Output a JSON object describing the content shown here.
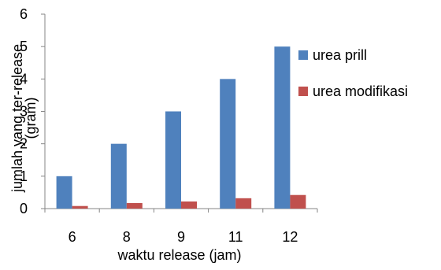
{
  "chart_data": {
    "type": "bar",
    "categories": [
      "6",
      "8",
      "9",
      "11",
      "12"
    ],
    "series": [
      {
        "name": "urea prill",
        "color": "#4F81BD",
        "values": [
          1.0,
          2.0,
          3.0,
          4.0,
          5.0
        ]
      },
      {
        "name": "urea modifikasi",
        "color": "#C0504D",
        "values": [
          0.08,
          0.17,
          0.22,
          0.32,
          0.42
        ]
      }
    ],
    "xlabel": "waktu release (jam)",
    "ylabel_line1": "jumlah yang ter-release",
    "ylabel_line2": "(gram)",
    "ylim": [
      0,
      6
    ],
    "yticks": [
      0,
      1,
      2,
      3,
      4,
      5,
      6
    ],
    "legend_position": "right",
    "grid": false
  }
}
